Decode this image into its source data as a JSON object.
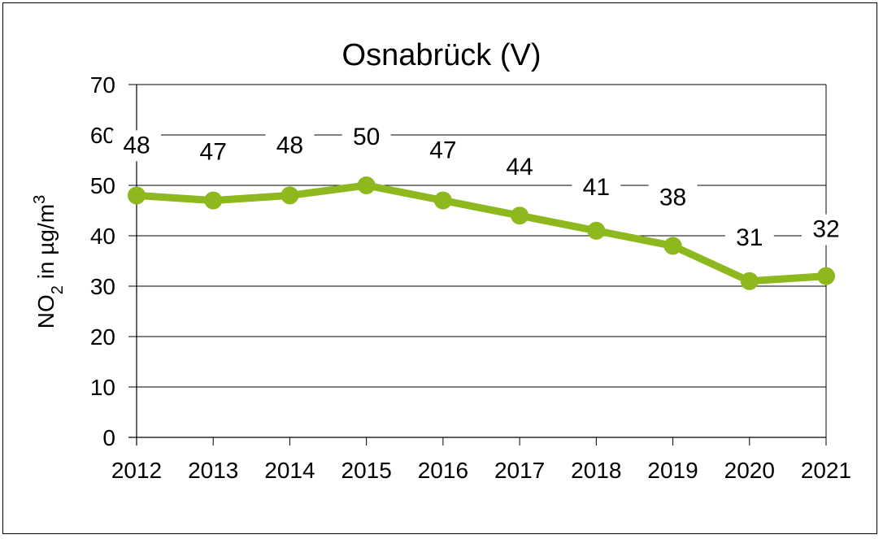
{
  "chart_data": {
    "type": "line",
    "title": "Osnabrück (V)",
    "xlabel": "",
    "ylabel": "NO2 in µg/m³",
    "ylabel_parts": {
      "pre": "NO",
      "sub": "2",
      "post": " in µg/m",
      "sup": "3"
    },
    "categories": [
      "2012",
      "2013",
      "2014",
      "2015",
      "2016",
      "2017",
      "2018",
      "2019",
      "2020",
      "2021"
    ],
    "series": [
      {
        "name": "Osnabrück (V)",
        "values": [
          48,
          47,
          48,
          50,
          47,
          44,
          41,
          38,
          31,
          32
        ],
        "color": "#8DB81E"
      }
    ],
    "ylim": [
      0,
      70
    ],
    "yticks": [
      0,
      10,
      20,
      30,
      40,
      50,
      60,
      70
    ],
    "grid": true,
    "legend": "none",
    "data_labels": true
  }
}
